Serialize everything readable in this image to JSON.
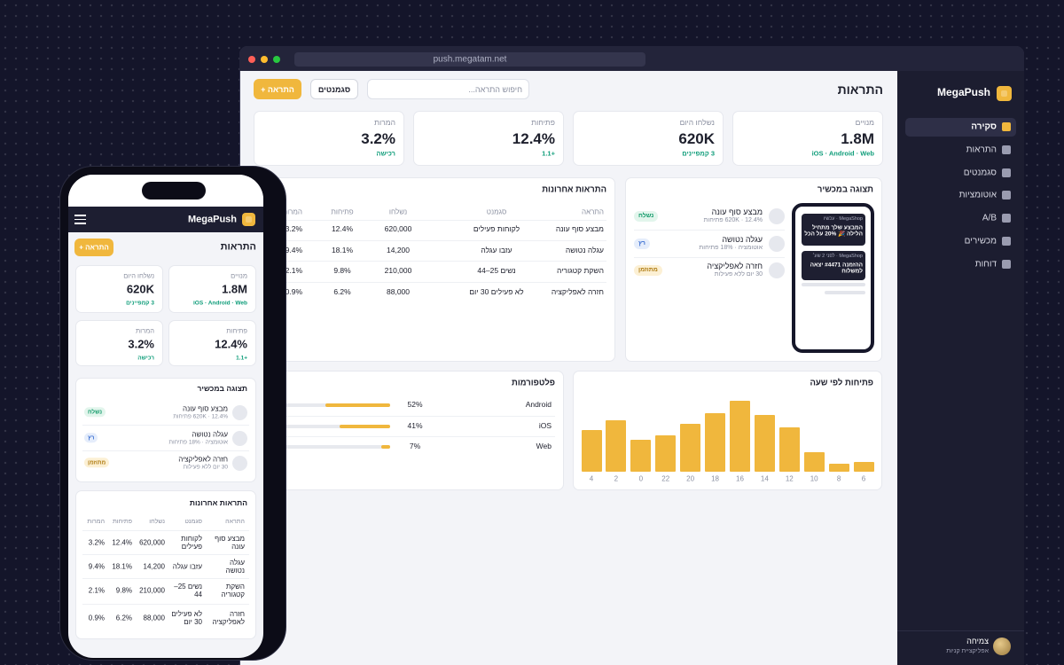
{
  "browser": {
    "url": "push.megatam.net"
  },
  "sidebar": {
    "brand": "MegaPush",
    "nav": [
      "סקירה",
      "התראות",
      "סגמנטים",
      "אוטומציות",
      "A/B",
      "מכשירים",
      "דוחות"
    ],
    "user": {
      "name": "צמיחה",
      "role": "אפליקציית קניות"
    }
  },
  "header": {
    "title": "התראות",
    "search_placeholder": "חיפוש התראה...",
    "segments_button": "סגמנטים",
    "new_button": "+ התראה"
  },
  "stats": [
    {
      "label": "מנויים",
      "value": "1.8M",
      "note": "iOS · Android · Web"
    },
    {
      "label": "נשלחו היום",
      "value": "620K",
      "note": "3 קמפיינים"
    },
    {
      "label": "פתיחות",
      "value": "12.4%",
      "note": "+1.1"
    },
    {
      "label": "המרות",
      "value": "3.2%",
      "note": "רכישה"
    }
  ],
  "preview": {
    "title": "תצוגה במכשיר",
    "items": [
      {
        "name": "מבצע סוף עונה",
        "meta": "620K · 12.4% פתיחות",
        "status": "נשלח"
      },
      {
        "name": "עגלה נטושה",
        "meta": "אוטומציה · 18% פתיחות",
        "status": "רץ"
      },
      {
        "name": "חזרה לאפליקציה",
        "meta": "30 יום ללא פעילות",
        "status": "מתוזמן"
      }
    ],
    "notifications": [
      {
        "app": "MegaShop · עכשיו",
        "text": "המבצע שלך מתחיל הלילה 🎉 20% על הכל"
      },
      {
        "app": "MegaShop · לפני 2 שע׳",
        "text": "ההזמנה #4471 יצאה למשלוח"
      }
    ]
  },
  "recent": {
    "title": "התראות אחרונות",
    "columns": [
      "התראה",
      "סגמנט",
      "נשלחו",
      "פתיחות",
      "המרות"
    ],
    "rows": [
      [
        "מבצע סוף עונה",
        "לקוחות פעילים",
        "620,000",
        "12.4%",
        "3.2%"
      ],
      [
        "עגלה נטושה",
        "עזבו עגלה",
        "14,200",
        "18.1%",
        "9.4%"
      ],
      [
        "השקת קטגוריה",
        "נשים 25–44",
        "210,000",
        "9.8%",
        "2.1%"
      ],
      [
        "חזרה לאפליקציה",
        "לא פעילים 30 יום",
        "88,000",
        "6.2%",
        "0.9%"
      ]
    ]
  },
  "chart_data": [
    {
      "type": "hbar",
      "title": "פלטפורמות",
      "categories": [
        "Android",
        "iOS",
        "Web"
      ],
      "values": [
        52,
        41,
        7
      ],
      "value_labels": [
        "52%",
        "41%",
        "7%"
      ],
      "xlim": [
        0,
        100
      ],
      "color": "#f0b73d"
    },
    {
      "type": "bar",
      "title": "פתיחות לפי שעה",
      "categories": [
        "6",
        "8",
        "10",
        "12",
        "14",
        "16",
        "18",
        "20",
        "22",
        "0",
        "2",
        "4"
      ],
      "values": [
        11,
        9,
        22,
        50,
        64,
        80,
        66,
        54,
        41,
        36,
        58,
        47
      ],
      "color": "#f0b73d"
    }
  ]
}
